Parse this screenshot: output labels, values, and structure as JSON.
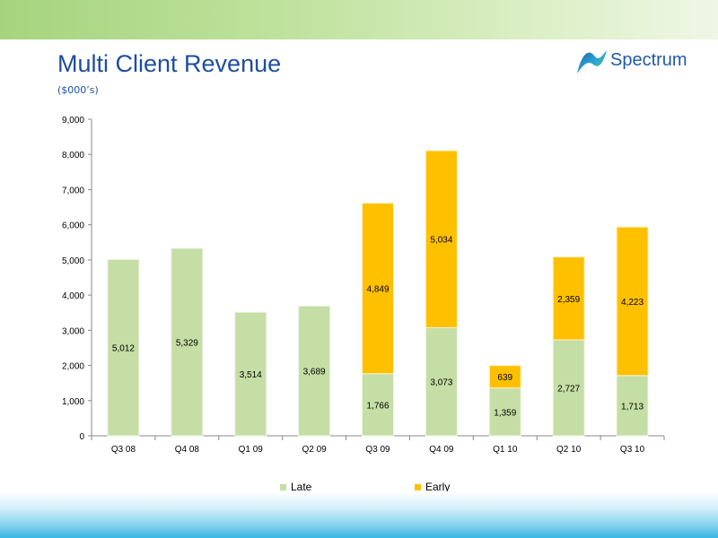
{
  "title": "Multi Client Revenue",
  "subtitle": "($000’s)",
  "logo": {
    "text": "Spectrum",
    "icon": "spectrum-wave-icon"
  },
  "colors": {
    "late": "#c4dea5",
    "early": "#ffc000",
    "title": "#1f4e9c"
  },
  "chart_data": {
    "type": "bar",
    "stacked": true,
    "categories": [
      "Q3 08",
      "Q4 08",
      "Q1 09",
      "Q2 09",
      "Q3 09",
      "Q4 09",
      "Q1 10",
      "Q2 10",
      "Q3 10"
    ],
    "series": [
      {
        "name": "Late",
        "values": [
          5012,
          5329,
          3514,
          3689,
          1766,
          3073,
          1359,
          2727,
          1713
        ]
      },
      {
        "name": "Early",
        "values": [
          null,
          null,
          null,
          null,
          4849,
          5034,
          639,
          2359,
          4223
        ]
      }
    ],
    "data_labels": {
      "Late": [
        "5,012",
        "5,329",
        "3,514",
        "3,689",
        "1,766",
        "3,073",
        "1,359",
        "2,727",
        "1,713"
      ],
      "Early": [
        "",
        "",
        "",
        "",
        "4,849",
        "5,034",
        "639",
        "2,359",
        "4,223"
      ]
    },
    "y_ticks": [
      "0",
      "1,000",
      "2,000",
      "3,000",
      "4,000",
      "5,000",
      "6,000",
      "7,000",
      "8,000",
      "9,000"
    ],
    "ylim": [
      0,
      9000
    ],
    "grid": false,
    "legend": "bottom",
    "xlabel": "",
    "ylabel": ""
  }
}
